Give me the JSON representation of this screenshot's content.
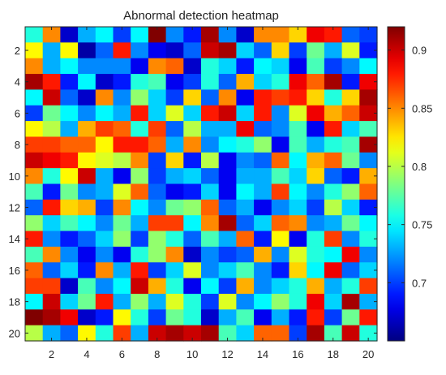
{
  "chart_data": {
    "type": "heatmap",
    "title": "Abnormal detection heatmap",
    "xlabel": "",
    "ylabel": "",
    "x_ticks": [
      "2",
      "4",
      "6",
      "8",
      "10",
      "12",
      "14",
      "16",
      "18",
      "20"
    ],
    "y_ticks": [
      "2",
      "4",
      "6",
      "8",
      "10",
      "12",
      "14",
      "16",
      "18",
      "20"
    ],
    "colorbar": {
      "colormap": "jet",
      "clim": [
        0.65,
        0.92
      ],
      "ticks": [
        "0.7",
        "0.75",
        "0.8",
        "0.85",
        "0.9"
      ]
    },
    "grid": false,
    "rows": 20,
    "cols": 20,
    "values": [
      [
        0.76,
        0.85,
        0.67,
        0.73,
        0.75,
        0.7,
        0.75,
        0.92,
        0.72,
        0.69,
        0.91,
        0.72,
        0.67,
        0.85,
        0.85,
        0.83,
        0.89,
        0.88,
        0.71,
        0.7
      ],
      [
        0.82,
        0.73,
        0.82,
        0.66,
        0.71,
        0.88,
        0.72,
        0.68,
        0.67,
        0.71,
        0.9,
        0.91,
        0.74,
        0.71,
        0.83,
        0.7,
        0.78,
        0.73,
        0.81,
        0.69
      ],
      [
        0.85,
        0.73,
        0.75,
        0.72,
        0.72,
        0.72,
        0.68,
        0.85,
        0.86,
        0.67,
        0.76,
        0.74,
        0.69,
        0.75,
        0.74,
        0.68,
        0.77,
        0.7,
        0.72,
        0.75
      ],
      [
        0.91,
        0.88,
        0.69,
        0.75,
        0.67,
        0.69,
        0.76,
        0.77,
        0.68,
        0.7,
        0.76,
        0.71,
        0.84,
        0.74,
        0.76,
        0.89,
        0.86,
        0.91,
        0.69,
        0.89
      ],
      [
        0.75,
        0.9,
        0.71,
        0.67,
        0.85,
        0.72,
        0.79,
        0.74,
        0.7,
        0.83,
        0.71,
        0.85,
        0.68,
        0.88,
        0.87,
        0.88,
        0.83,
        0.76,
        0.83,
        0.91
      ],
      [
        0.7,
        0.78,
        0.75,
        0.72,
        0.75,
        0.73,
        0.88,
        0.74,
        0.81,
        0.74,
        0.88,
        0.9,
        0.74,
        0.88,
        0.72,
        0.81,
        0.89,
        0.84,
        0.86,
        0.9
      ],
      [
        0.82,
        0.8,
        0.73,
        0.84,
        0.87,
        0.86,
        0.76,
        0.87,
        0.71,
        0.8,
        0.73,
        0.73,
        0.89,
        0.71,
        0.72,
        0.77,
        0.68,
        0.88,
        0.74,
        0.77
      ],
      [
        0.87,
        0.87,
        0.86,
        0.86,
        0.82,
        0.88,
        0.88,
        0.86,
        0.73,
        0.85,
        0.72,
        0.75,
        0.76,
        0.79,
        0.68,
        0.77,
        0.73,
        0.76,
        0.77,
        0.91
      ],
      [
        0.9,
        0.89,
        0.88,
        0.82,
        0.81,
        0.8,
        0.85,
        0.7,
        0.83,
        0.69,
        0.8,
        0.68,
        0.72,
        0.71,
        0.86,
        0.75,
        0.84,
        0.86,
        0.78,
        0.72
      ],
      [
        0.85,
        0.76,
        0.82,
        0.9,
        0.73,
        0.68,
        0.79,
        0.7,
        0.73,
        0.74,
        0.71,
        0.68,
        0.73,
        0.73,
        0.77,
        0.74,
        0.83,
        0.71,
        0.69,
        0.84
      ],
      [
        0.77,
        0.69,
        0.78,
        0.72,
        0.73,
        0.81,
        0.86,
        0.71,
        0.68,
        0.69,
        0.74,
        0.68,
        0.75,
        0.73,
        0.87,
        0.75,
        0.72,
        0.76,
        0.79,
        0.86
      ],
      [
        0.71,
        0.88,
        0.83,
        0.84,
        0.7,
        0.85,
        0.75,
        0.72,
        0.78,
        0.79,
        0.86,
        0.71,
        0.73,
        0.68,
        0.72,
        0.74,
        0.7,
        0.8,
        0.74,
        0.69
      ],
      [
        0.79,
        0.74,
        0.77,
        0.75,
        0.72,
        0.78,
        0.73,
        0.87,
        0.87,
        0.75,
        0.85,
        0.91,
        0.71,
        0.74,
        0.86,
        0.85,
        0.72,
        0.73,
        0.78,
        0.75
      ],
      [
        0.88,
        0.72,
        0.69,
        0.71,
        0.74,
        0.79,
        0.7,
        0.79,
        0.76,
        0.71,
        0.77,
        0.73,
        0.86,
        0.69,
        0.82,
        0.68,
        0.76,
        0.87,
        0.72,
        0.76
      ],
      [
        0.77,
        0.85,
        0.72,
        0.68,
        0.72,
        0.68,
        0.76,
        0.79,
        0.85,
        0.67,
        0.72,
        0.7,
        0.71,
        0.84,
        0.72,
        0.81,
        0.76,
        0.75,
        0.89,
        0.72
      ],
      [
        0.86,
        0.71,
        0.74,
        0.69,
        0.85,
        0.73,
        0.88,
        0.7,
        0.74,
        0.81,
        0.72,
        0.74,
        0.77,
        0.72,
        0.69,
        0.83,
        0.75,
        0.89,
        0.71,
        0.74
      ],
      [
        0.87,
        0.87,
        0.67,
        0.77,
        0.72,
        0.75,
        0.9,
        0.84,
        0.76,
        0.68,
        0.75,
        0.7,
        0.84,
        0.72,
        0.74,
        0.76,
        0.84,
        0.73,
        0.76,
        0.87
      ],
      [
        0.75,
        0.9,
        0.74,
        0.78,
        0.88,
        0.73,
        0.79,
        0.73,
        0.81,
        0.76,
        0.7,
        0.81,
        0.72,
        0.75,
        0.79,
        0.76,
        0.89,
        0.74,
        0.91,
        0.73
      ],
      [
        0.92,
        0.91,
        0.89,
        0.67,
        0.69,
        0.82,
        0.76,
        0.7,
        0.78,
        0.76,
        0.67,
        0.73,
        0.77,
        0.68,
        0.73,
        0.69,
        0.88,
        0.7,
        0.78,
        0.88
      ],
      [
        0.8,
        0.73,
        0.71,
        0.82,
        0.76,
        0.87,
        0.73,
        0.9,
        0.91,
        0.9,
        0.91,
        0.77,
        0.74,
        0.86,
        0.86,
        0.7,
        0.91,
        0.77,
        0.9,
        0.76
      ]
    ]
  }
}
